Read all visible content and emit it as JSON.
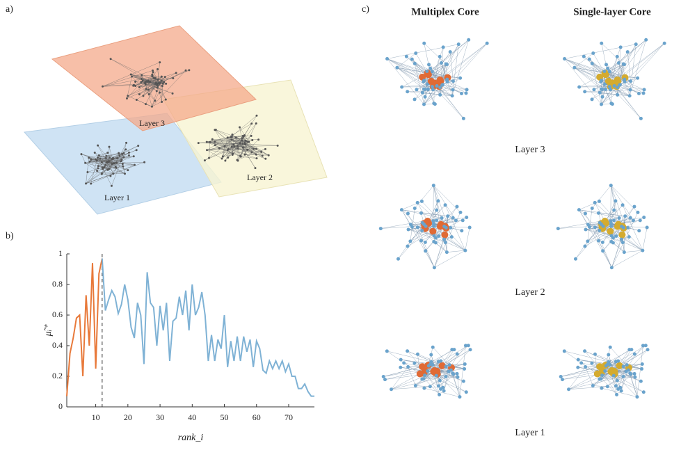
{
  "panel_labels": [
    "a)",
    "b)",
    "c)"
  ],
  "panel_a": {
    "layers": [
      "Layer 3",
      "Layer 2",
      "Layer 1"
    ]
  },
  "panel_c": {
    "columns": [
      "Multiplex Core",
      "Single-layer Core"
    ],
    "rows": [
      "Layer 3",
      "Layer 2",
      "Layer 1"
    ]
  },
  "chart_data": {
    "type": "line",
    "x_label": "rank_i",
    "y_label": "μ̃ᵢ⁺",
    "xlim": [
      1,
      78
    ],
    "ylim": [
      0,
      1
    ],
    "xticks": [
      10,
      20,
      30,
      40,
      50,
      60,
      70
    ],
    "yticks": [
      0,
      0.2,
      0.4,
      0.6,
      0.8,
      1
    ],
    "vline": 12,
    "series": [
      {
        "color": "#e8793a",
        "x": [
          1,
          2,
          3,
          4,
          5,
          6,
          7,
          8,
          9,
          10,
          11,
          12
        ],
        "values": [
          0.07,
          0.35,
          0.45,
          0.58,
          0.6,
          0.2,
          0.73,
          0.4,
          0.94,
          0.25,
          0.87,
          0.97
        ]
      },
      {
        "color": "#7fb2d5",
        "x": [
          12,
          13,
          14,
          15,
          16,
          17,
          18,
          19,
          20,
          21,
          22,
          23,
          24,
          25,
          26,
          27,
          28,
          29,
          30,
          31,
          32,
          33,
          34,
          35,
          36,
          37,
          38,
          39,
          40,
          41,
          42,
          43,
          44,
          45,
          46,
          47,
          48,
          49,
          50,
          51,
          52,
          53,
          54,
          55,
          56,
          57,
          58,
          59,
          60,
          61,
          62,
          63,
          64,
          65,
          66,
          67,
          68,
          69,
          70,
          71,
          72,
          73,
          74,
          75,
          76,
          77,
          78
        ],
        "values": [
          0.97,
          0.63,
          0.7,
          0.76,
          0.72,
          0.61,
          0.67,
          0.8,
          0.7,
          0.52,
          0.45,
          0.68,
          0.6,
          0.28,
          0.88,
          0.68,
          0.65,
          0.4,
          0.66,
          0.5,
          0.68,
          0.3,
          0.56,
          0.58,
          0.72,
          0.6,
          0.76,
          0.5,
          0.8,
          0.6,
          0.65,
          0.75,
          0.6,
          0.3,
          0.47,
          0.3,
          0.44,
          0.38,
          0.6,
          0.26,
          0.43,
          0.3,
          0.46,
          0.3,
          0.46,
          0.36,
          0.44,
          0.26,
          0.43,
          0.38,
          0.24,
          0.22,
          0.3,
          0.25,
          0.3,
          0.25,
          0.3,
          0.23,
          0.28,
          0.2,
          0.2,
          0.12,
          0.12,
          0.15,
          0.1,
          0.07,
          0.07
        ]
      }
    ]
  }
}
